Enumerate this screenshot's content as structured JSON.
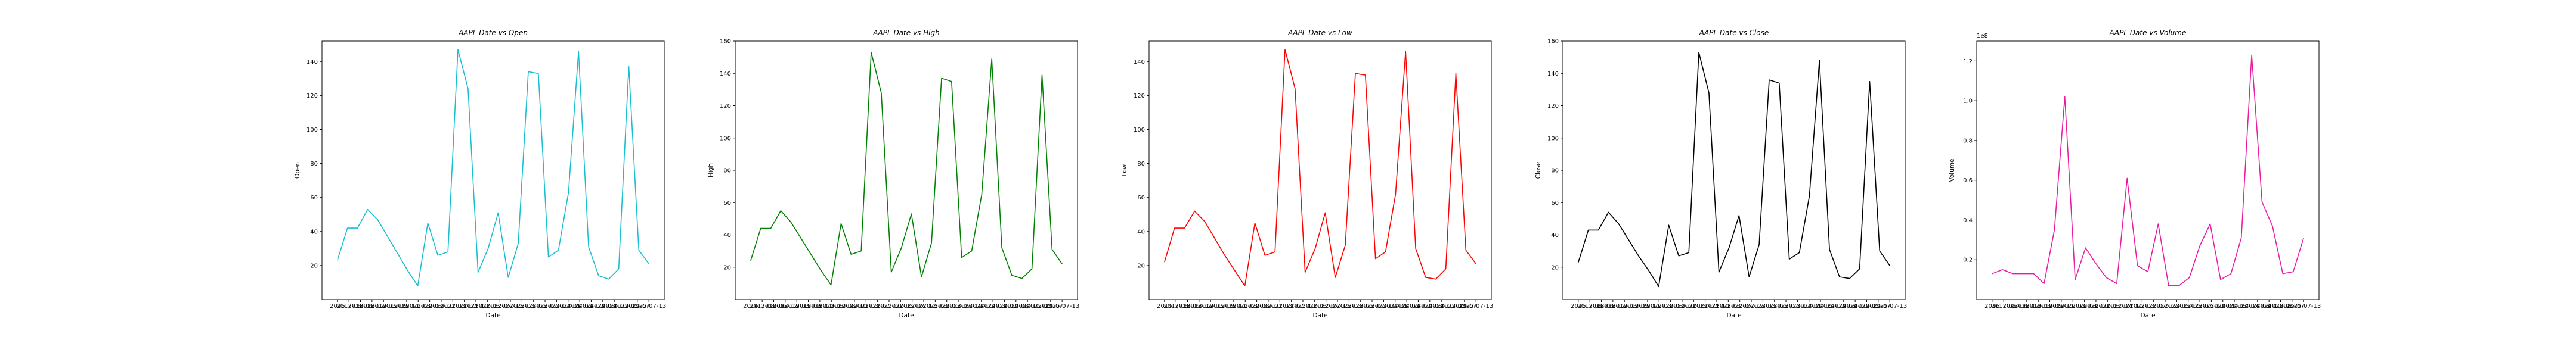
{
  "chart_data": [
    {
      "type": "line",
      "title": "AAPL Date vs Open",
      "xlabel": "Date",
      "ylabel": "Open",
      "color": "#17becf",
      "ylim": [
        0,
        152
      ],
      "yticks": [
        20,
        40,
        60,
        80,
        100,
        120,
        140
      ],
      "offset_label": "",
      "x_tick_labels": [
        "2016",
        "2017-08",
        "2018-06",
        "2018-12",
        "2019-03",
        "2019-09",
        "2019-11",
        "2020-03",
        "2020-08",
        "2020-10",
        "2021-03",
        "2021-07",
        "2021-10",
        "2022-03",
        "2022-07",
        "2022-12",
        "2023-03",
        "2023-05",
        "2023-07",
        "2023-10",
        "2024-01",
        "2024-03",
        "2024-07",
        "2024-08",
        "2024-10",
        "2025-03",
        "2025-07",
        "2025-07-13"
      ],
      "values": [
        23,
        42,
        42,
        53,
        47,
        37,
        27,
        17,
        8,
        45,
        26,
        28,
        147,
        124,
        16,
        30,
        51,
        13,
        33,
        134,
        133,
        25,
        29,
        63,
        146,
        31,
        14,
        12,
        18,
        137,
        29,
        21
      ]
    },
    {
      "type": "line",
      "title": "AAPL Date vs High",
      "xlabel": "Date",
      "ylabel": "High",
      "color": "#008000",
      "ylim": [
        0,
        160
      ],
      "yticks": [
        20,
        40,
        60,
        80,
        100,
        120,
        140,
        160
      ],
      "offset_label": "",
      "x_tick_labels": [
        "2016",
        "2017-08",
        "2018-06",
        "2018-12",
        "2019-03",
        "2019-09",
        "2019-11",
        "2020-03",
        "2020-08",
        "2020-10",
        "2021-03",
        "2021-07",
        "2021-10",
        "2022-03",
        "2022-07",
        "2022-12",
        "2023-03",
        "2023-05",
        "2023-07",
        "2023-10",
        "2024-01",
        "2024-03",
        "2024-07",
        "2024-08",
        "2024-10",
        "2025-03",
        "2025-07",
        "2025-07-13"
      ],
      "values": [
        24,
        44,
        44,
        55,
        48,
        38,
        28,
        18,
        9,
        47,
        28,
        30,
        153,
        128,
        17,
        32,
        53,
        14,
        35,
        137,
        135,
        26,
        30,
        65,
        149,
        32,
        15,
        13,
        19,
        139,
        31,
        22
      ]
    },
    {
      "type": "line",
      "title": "AAPL Date vs Low",
      "xlabel": "Date",
      "ylabel": "Low",
      "color": "#ff0000",
      "ylim": [
        0,
        152
      ],
      "yticks": [
        20,
        40,
        60,
        80,
        100,
        120,
        140
      ],
      "offset_label": "",
      "x_tick_labels": [
        "2016",
        "2017-08",
        "2018-06",
        "2018-12",
        "2019-03",
        "2019-09",
        "2019-11",
        "2020-03",
        "2020-08",
        "2020-10",
        "2021-03",
        "2021-07",
        "2021-10",
        "2022-03",
        "2022-07",
        "2022-12",
        "2023-03",
        "2023-05",
        "2023-07",
        "2023-10",
        "2024-01",
        "2024-03",
        "2024-07",
        "2024-08",
        "2024-10",
        "2025-03",
        "2025-07",
        "2025-07-13"
      ],
      "values": [
        22,
        42,
        42,
        52,
        46,
        36,
        26,
        17,
        8,
        45,
        26,
        28,
        147,
        124,
        16,
        30,
        51,
        13,
        32,
        133,
        132,
        24,
        28,
        62,
        146,
        30,
        13,
        12,
        18,
        133,
        29,
        21
      ]
    },
    {
      "type": "line",
      "title": "AAPL Date vs Close",
      "xlabel": "Date",
      "ylabel": "Close",
      "color": "#000000",
      "ylim": [
        0,
        160
      ],
      "yticks": [
        20,
        40,
        60,
        80,
        100,
        120,
        140,
        160
      ],
      "offset_label": "",
      "x_tick_labels": [
        "2016",
        "2017-08",
        "2018-06",
        "2018-12",
        "2019-03",
        "2019-09",
        "2019-11",
        "2020-03",
        "2020-08",
        "2020-10",
        "2021-03",
        "2021-07",
        "2021-10",
        "2022-03",
        "2022-07",
        "2022-12",
        "2023-03",
        "2023-05",
        "2023-07",
        "2023-10",
        "2024-01",
        "2024-03",
        "2024-07",
        "2024-08",
        "2024-10",
        "2025-03",
        "2025-07",
        "2025-07-13"
      ],
      "values": [
        23,
        43,
        43,
        54,
        47,
        37,
        27,
        18,
        8,
        46,
        27,
        29,
        153,
        128,
        17,
        32,
        52,
        14,
        34,
        136,
        134,
        25,
        29,
        64,
        148,
        31,
        14,
        13,
        19,
        135,
        30,
        21
      ]
    },
    {
      "type": "line",
      "title": "AAPL Date vs Volume",
      "xlabel": "Date",
      "ylabel": "Volume",
      "color": "#e81ba2",
      "ylim": [
        0,
        1.3
      ],
      "yticks": [
        0.2,
        0.4,
        0.6,
        0.8,
        1.0,
        1.2
      ],
      "offset_label": "1e8",
      "x_tick_labels": [
        "2016",
        "2017-08",
        "2018-06",
        "2018-12",
        "2019-03",
        "2019-09",
        "2019-11",
        "2020-03",
        "2020-08",
        "2020-10",
        "2021-03",
        "2021-07",
        "2021-10",
        "2022-03",
        "2022-07",
        "2022-12",
        "2023-03",
        "2023-05",
        "2023-07",
        "2023-10",
        "2024-01",
        "2024-03",
        "2024-07",
        "2024-08",
        "2024-10",
        "2025-03",
        "2025-07",
        "2025-07-13"
      ],
      "values": [
        0.13,
        0.15,
        0.13,
        0.13,
        0.13,
        0.08,
        0.35,
        1.02,
        0.1,
        0.26,
        0.18,
        0.11,
        0.08,
        0.61,
        0.17,
        0.14,
        0.38,
        0.07,
        0.07,
        0.11,
        0.27,
        0.38,
        0.1,
        0.13,
        0.31,
        1.23,
        0.49,
        0.37,
        0.13,
        0.14,
        0.31
      ]
    }
  ]
}
